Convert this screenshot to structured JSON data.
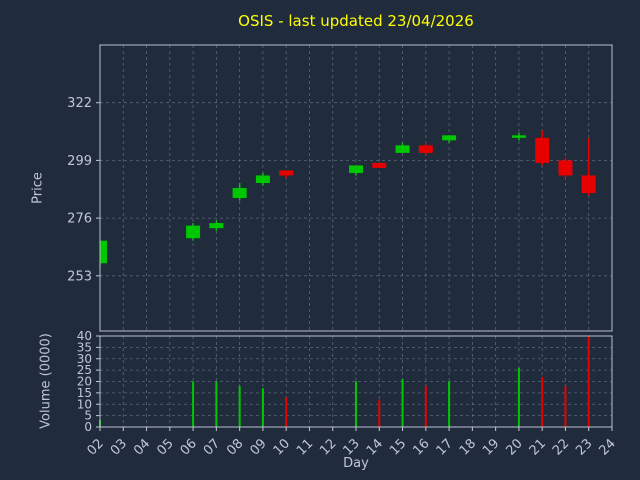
{
  "figure": {
    "background": "#202c3c",
    "text_color": "#c0c6d8",
    "title_color": "#ffff00",
    "grid_color": "#8fa0b4",
    "spine_color": "#b8c0d0"
  },
  "chart_data": {
    "type": "candlestick_with_volume",
    "title": "OSIS - last updated 23/04/2026",
    "xlabel": "Day",
    "price_ylabel": "Price",
    "volume_ylabel": "Volume (0000)",
    "grid": true,
    "legend": "none",
    "x_ticks": [
      "02",
      "03",
      "04",
      "05",
      "06",
      "07",
      "08",
      "09",
      "10",
      "11",
      "12",
      "13",
      "14",
      "15",
      "16",
      "17",
      "18",
      "19",
      "20",
      "21",
      "22",
      "23",
      "24"
    ],
    "xlim": [
      2,
      24
    ],
    "price_ticks": [
      253,
      276,
      299,
      322
    ],
    "price_ylim": [
      231,
      345
    ],
    "volume_ticks": [
      0,
      5,
      10,
      15,
      20,
      25,
      30,
      35,
      40
    ],
    "volume_ylim": [
      0,
      40
    ],
    "up_color": "#00c800",
    "down_color": "#e60000",
    "candles": [
      {
        "day": 2,
        "open": 258,
        "high": 267,
        "low": 257,
        "close": 267,
        "volume": 3
      },
      {
        "day": 6,
        "open": 268,
        "high": 274,
        "low": 267,
        "close": 273,
        "volume": 20
      },
      {
        "day": 7,
        "open": 272,
        "high": 275,
        "low": 271,
        "close": 274,
        "volume": 20
      },
      {
        "day": 8,
        "open": 284,
        "high": 290,
        "low": 283,
        "close": 288,
        "volume": 18
      },
      {
        "day": 9,
        "open": 290,
        "high": 294,
        "low": 289,
        "close": 293,
        "volume": 17
      },
      {
        "day": 10,
        "open": 295,
        "high": 295,
        "low": 292,
        "close": 293,
        "volume": 13
      },
      {
        "day": 13,
        "open": 294,
        "high": 297,
        "low": 293,
        "close": 297,
        "volume": 20
      },
      {
        "day": 14,
        "open": 298,
        "high": 298,
        "low": 296,
        "close": 296,
        "volume": 12
      },
      {
        "day": 15,
        "open": 302,
        "high": 306,
        "low": 302,
        "close": 305,
        "volume": 21
      },
      {
        "day": 16,
        "open": 305,
        "high": 306,
        "low": 301,
        "close": 302,
        "volume": 18
      },
      {
        "day": 17,
        "open": 307,
        "high": 309,
        "low": 306,
        "close": 309,
        "volume": 20
      },
      {
        "day": 20,
        "open": 308,
        "high": 310,
        "low": 307,
        "close": 309,
        "volume": 26
      },
      {
        "day": 21,
        "open": 308,
        "high": 311,
        "low": 297,
        "close": 298,
        "volume": 22
      },
      {
        "day": 22,
        "open": 299,
        "high": 300,
        "low": 292,
        "close": 293,
        "volume": 18
      },
      {
        "day": 23,
        "open": 293,
        "high": 308,
        "low": 285,
        "close": 286,
        "volume": 40
      }
    ]
  }
}
